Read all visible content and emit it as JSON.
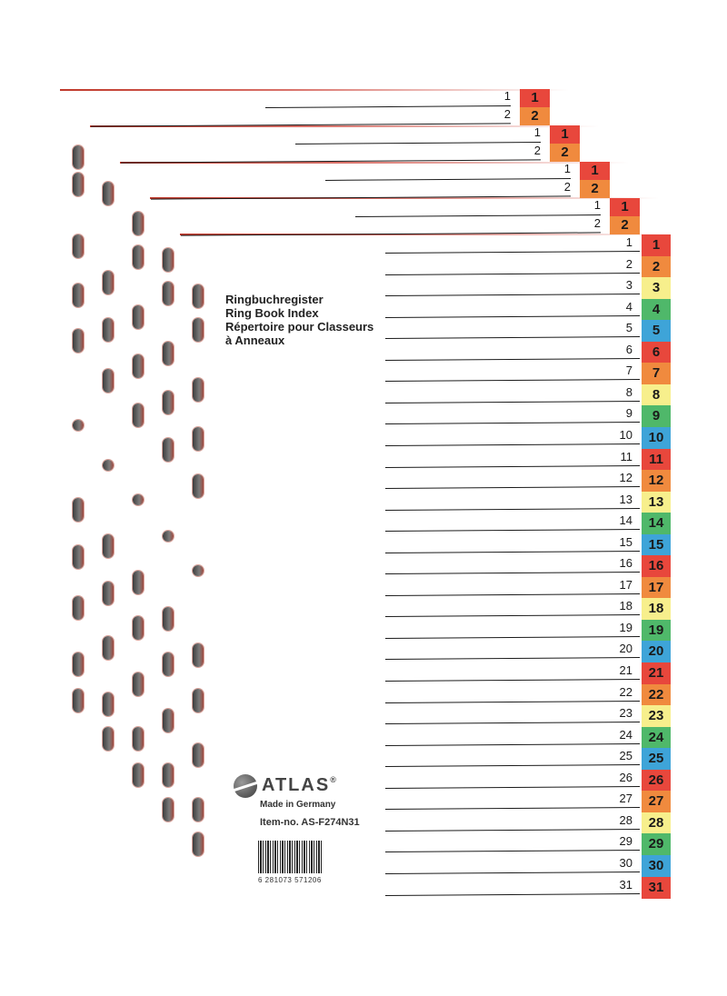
{
  "header_tabs": [
    {
      "labels": [
        "1",
        "2"
      ]
    },
    {
      "labels": [
        "1",
        "2"
      ]
    },
    {
      "labels": [
        "1",
        "2"
      ]
    },
    {
      "labels": [
        "1",
        "2"
      ]
    }
  ],
  "index_numbers": [
    "1",
    "2",
    "3",
    "4",
    "5",
    "6",
    "7",
    "8",
    "9",
    "10",
    "11",
    "12",
    "13",
    "14",
    "15",
    "16",
    "17",
    "18",
    "19",
    "20",
    "21",
    "22",
    "23",
    "24",
    "25",
    "26",
    "27",
    "28",
    "29",
    "30",
    "31"
  ],
  "tab_colors": [
    "#e8473c",
    "#f08a3e",
    "#f7ef8c",
    "#4fb86a",
    "#3ea4d8"
  ],
  "title_lines": [
    "Ringbuchregister",
    "Ring Book Index",
    "Répertoire pour Classeurs",
    "à Anneaux"
  ],
  "brand": {
    "name": "ATLAS",
    "registered": "®",
    "made_in": "Made in Germany",
    "item_no": "Item-no. AS-F274N31",
    "barcode_number": "6 281073 571206"
  }
}
